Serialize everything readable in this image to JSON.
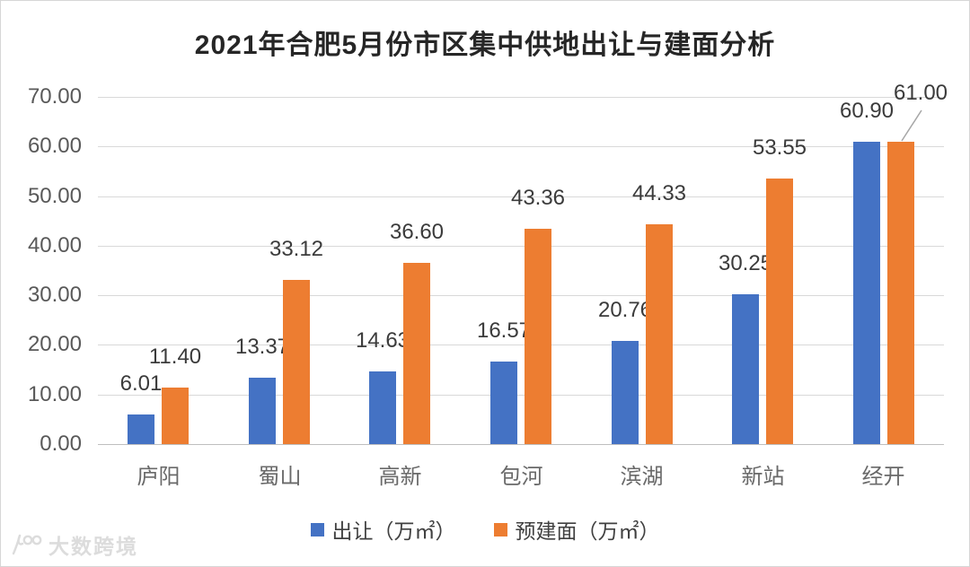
{
  "chart_data": {
    "type": "bar",
    "title": "2021年合肥5月份市区集中供地出让与建面分析",
    "categories": [
      "庐阳",
      "蜀山",
      "高新",
      "包河",
      "滨湖",
      "新站",
      "经开"
    ],
    "series": [
      {
        "name": "出让（万㎡）",
        "color": "#4472C4",
        "values": [
          6.01,
          13.37,
          14.63,
          16.57,
          20.76,
          30.25,
          60.9
        ]
      },
      {
        "name": "预建面（万㎡）",
        "color": "#ED7D31",
        "values": [
          11.4,
          33.12,
          36.6,
          43.36,
          44.33,
          53.55,
          61.0
        ]
      }
    ],
    "xlabel": "",
    "ylabel": "",
    "ylim": [
      0,
      70
    ],
    "ytick_step": 10,
    "ytick_labels": [
      "0.00",
      "10.00",
      "20.00",
      "30.00",
      "40.00",
      "50.00",
      "60.00",
      "70.00"
    ],
    "grid": "horizontal",
    "data_labels": true,
    "legend_position": "bottom",
    "callout": {
      "series": 1,
      "index": 6,
      "dx": 22,
      "dy": -20,
      "leader": true
    }
  },
  "watermark": {
    "text": "大数跨境"
  }
}
